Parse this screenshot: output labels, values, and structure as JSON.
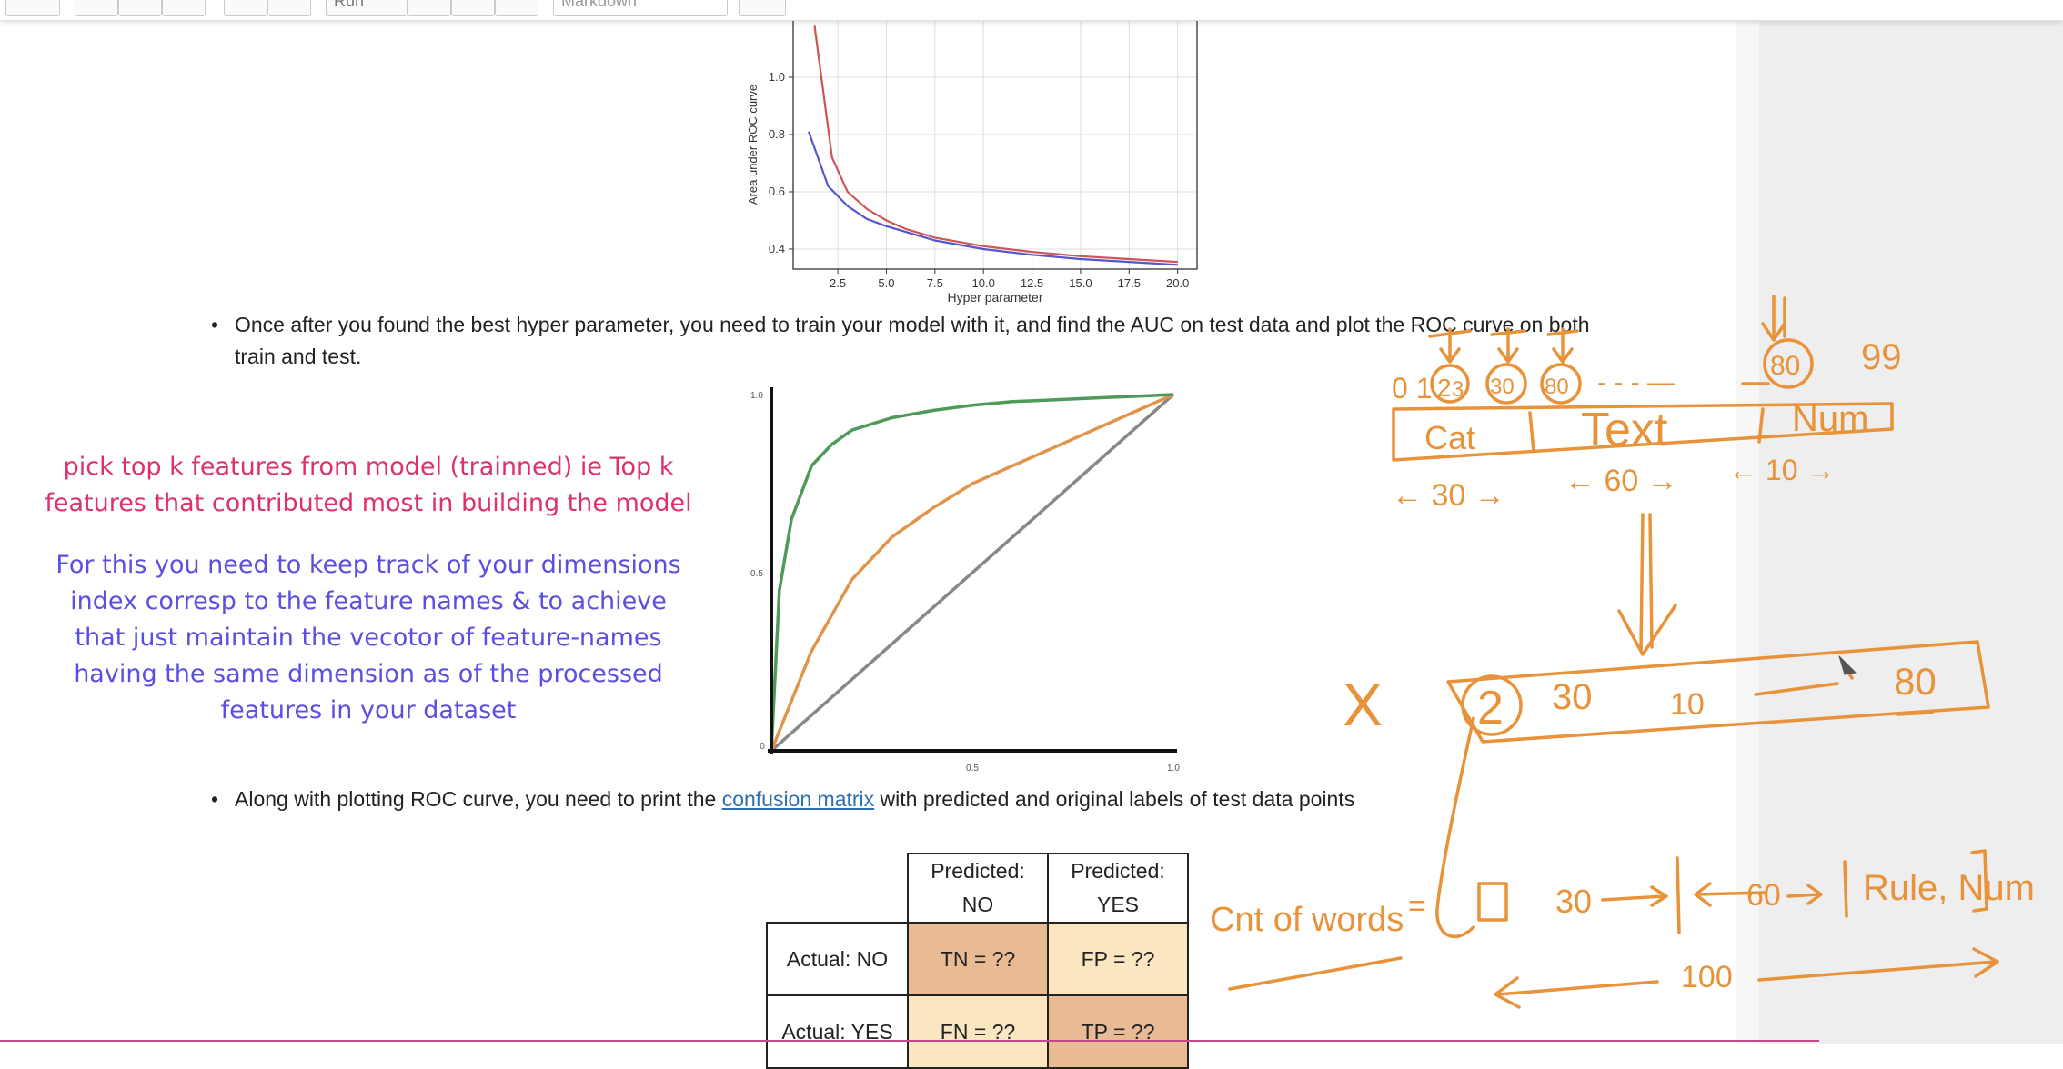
{
  "toolbar": {
    "run_label": "Run",
    "cell_type": "Markdown"
  },
  "bullets": {
    "roc_text_line1": "Once after you found the best hyper parameter, you need to train your model with it, and find the AUC on test data and plot the ROC curve on both",
    "roc_text_line2": "train and test.",
    "cm_text_before": "Along with plotting ROC curve, you need to print the ",
    "cm_link": "confusion matrix",
    "cm_text_after": " with predicted and original labels of test data points"
  },
  "auc_chart": {
    "type": "line",
    "ylabel": "Area under ROC curve",
    "xlabel": "Hyper parameter",
    "x_ticks": [
      "2.5",
      "5.0",
      "7.5",
      "10.0",
      "12.5",
      "15.0",
      "17.5",
      "20.0"
    ],
    "y_ticks": [
      "0.4",
      "0.6",
      "0.8",
      "1.0"
    ],
    "xlim": [
      0.2,
      21
    ],
    "ylim": [
      0.33,
      1.2
    ],
    "grid": true,
    "series": [
      {
        "color": "#cc5555",
        "x": [
          1.3,
          2.2,
          3.0,
          4.0,
          5.0,
          6.0,
          7.5,
          10.0,
          12.5,
          15.0,
          17.5,
          20.0
        ],
        "y": [
          1.18,
          0.72,
          0.6,
          0.54,
          0.5,
          0.47,
          0.44,
          0.41,
          0.39,
          0.375,
          0.365,
          0.355
        ]
      },
      {
        "color": "#5555cc",
        "x": [
          1.0,
          2.0,
          3.0,
          4.0,
          5.0,
          6.0,
          7.5,
          10.0,
          12.5,
          15.0,
          17.5,
          20.0
        ],
        "y": [
          0.81,
          0.62,
          0.55,
          0.505,
          0.48,
          0.46,
          0.43,
          0.4,
          0.38,
          0.365,
          0.355,
          0.345
        ]
      }
    ]
  },
  "roc_chart": {
    "type": "line",
    "x_ticks": [
      "0",
      "0.5",
      "1.0"
    ],
    "y_ticks": [
      "0.5",
      "1.0"
    ],
    "xlim": [
      0,
      1
    ],
    "ylim": [
      0,
      1
    ],
    "series": [
      {
        "color": "#4f9a5a",
        "x": [
          0,
          0.02,
          0.05,
          0.1,
          0.15,
          0.2,
          0.3,
          0.4,
          0.5,
          0.6,
          0.7,
          0.8,
          0.9,
          1.0
        ],
        "y": [
          0,
          0.45,
          0.65,
          0.8,
          0.86,
          0.9,
          0.935,
          0.955,
          0.97,
          0.98,
          0.985,
          0.99,
          0.995,
          1.0
        ]
      },
      {
        "color": "#e0954a",
        "x": [
          0,
          0.05,
          0.1,
          0.2,
          0.3,
          0.4,
          0.5,
          0.6,
          0.7,
          0.8,
          0.9,
          1.0
        ],
        "y": [
          0,
          0.14,
          0.28,
          0.48,
          0.6,
          0.68,
          0.75,
          0.8,
          0.85,
          0.9,
          0.95,
          1.0
        ]
      },
      {
        "color": "#888888",
        "x": [
          0,
          1.0
        ],
        "y": [
          0,
          1.0
        ]
      }
    ]
  },
  "notes": {
    "pink_line1": "pick top k features from model (trainned) ie Top k",
    "pink_line2": "features that contributed most in building the model",
    "purple_line1": "For this you need to keep track of your dimensions",
    "purple_line2": "index corresp to the feature names & to achieve",
    "purple_line3": "that just maintain the vecotor of feature-names",
    "purple_line4": "having the same dimension as of the processed",
    "purple_line5": "features in your dataset"
  },
  "confusion_matrix": {
    "header_no": [
      "Predicted:",
      "NO"
    ],
    "header_yes": [
      "Predicted:",
      "YES"
    ],
    "row_no": "Actual: NO",
    "row_yes": "Actual: YES",
    "tn": "TN = ??",
    "fp": "FP = ??",
    "fn": "FN = ??",
    "tp": "TP = ??"
  },
  "colors": {
    "pink_note": "#e0306a",
    "purple_note": "#5b4fe0",
    "ink_orange": "#e8923a",
    "cm_dark": "#e8bb95",
    "cm_light": "#fbe6c2"
  },
  "annotations": {
    "index_start": "0 1",
    "idx_2": "2",
    "idx_3": "3",
    "idx_30": "30",
    "idx_80": "80",
    "idx_99": "99",
    "dashes": "- - -   —",
    "box_cat": "Cat",
    "box_text": "Text",
    "box_num": "Num",
    "span_30": "← 30 →",
    "span_60": "← 60 →",
    "span_10": "← 10 →",
    "x_mark": "X",
    "vec_2": "2",
    "vec_30": "30",
    "vec_10": "10",
    "vec_80": "80",
    "cnt_words": "Cnt of words",
    "equals": "=",
    "arr_30": "30",
    "arr_60": "60",
    "arr_rule": "Rule, Num",
    "len_100": "100"
  }
}
